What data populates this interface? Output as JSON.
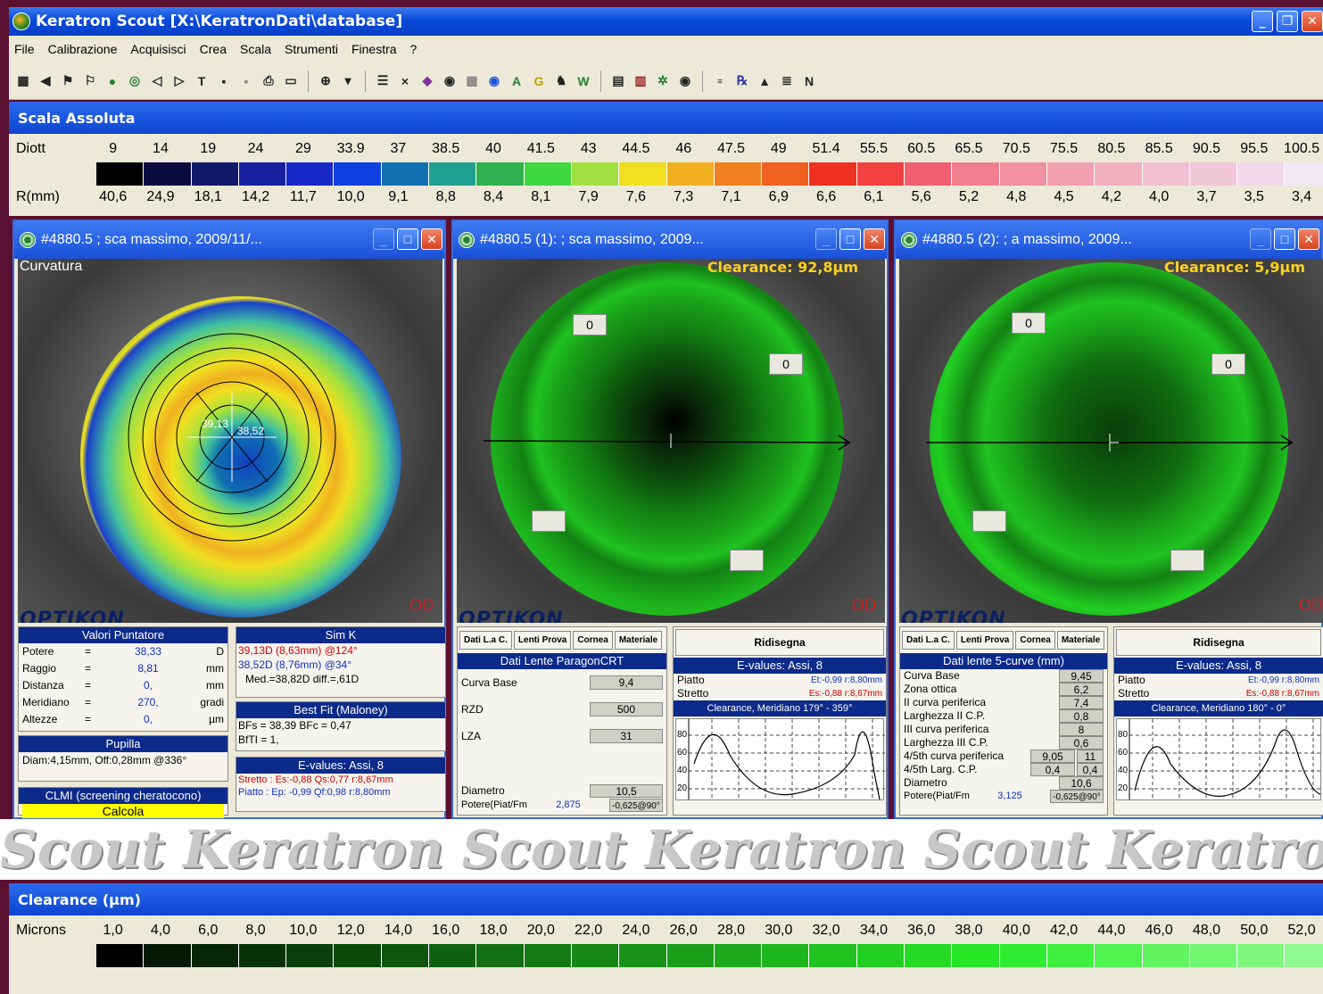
{
  "window": {
    "title": "Keratron Scout [X:\\KeratronDati\\database]"
  },
  "menu": [
    "File",
    "Calibrazione",
    "Acquisisci",
    "Crea",
    "Scala",
    "Strumenti",
    "Finestra",
    "?"
  ],
  "toolbar_icons": [
    "save-exam-icon",
    "camera-icon",
    "flag-icon",
    "flag-pair-icon",
    "globe-icon",
    "ring-icon",
    "rewind-icon",
    "forward-icon",
    "t-icon",
    "floppy-icon",
    "floppy-grey-icon",
    "print-icon",
    "monitor-icon",
    "binoculars-icon",
    "list-icon",
    "close-x-icon",
    "lens-icon",
    "eye-icon",
    "grid-icon",
    "target-icon",
    "a-icon",
    "g-icon",
    "chair-icon",
    "w-icon",
    "table-icon",
    "chart-icon",
    "tree-icon",
    "eye-view-icon",
    "view-icon",
    "rx-icon",
    "triangle-icon",
    "stack-icon",
    "n-icon"
  ],
  "scale_abs": {
    "title": "Scala Assoluta",
    "diott_label": "Diott",
    "rmm_label": "R(mm)",
    "diott": [
      "9",
      "14",
      "19",
      "24",
      "29",
      "33.9",
      "37",
      "38.5",
      "40",
      "41.5",
      "43",
      "44.5",
      "46",
      "47.5",
      "49",
      "51.4",
      "55.5",
      "60.5",
      "65.5",
      "70.5",
      "75.5",
      "80.5",
      "85.5",
      "90.5",
      "95.5",
      "100.5"
    ],
    "rmm": [
      "40,6",
      "24,9",
      "18,1",
      "14,2",
      "11,7",
      "10,0",
      "9,1",
      "8,8",
      "8,4",
      "8,1",
      "7,9",
      "7,6",
      "7,3",
      "7,1",
      "6,9",
      "6,6",
      "6,1",
      "5,6",
      "5,2",
      "4,8",
      "4,5",
      "4,2",
      "4,0",
      "3,7",
      "3,5",
      "3,4"
    ],
    "colors": [
      "#000000",
      "#0a0a40",
      "#10186a",
      "#1820a0",
      "#1a28c8",
      "#1040e0",
      "#1070b0",
      "#20a090",
      "#30b050",
      "#40d840",
      "#a0e040",
      "#f0e020",
      "#f0b020",
      "#f08020",
      "#f06020",
      "#f03020",
      "#f04040",
      "#f06070",
      "#f08090",
      "#f090a0",
      "#f0a0b0",
      "#f0b0c0",
      "#f0c0d0",
      "#f0c8d8",
      "#f0d8e8",
      "#f0e8f0"
    ]
  },
  "child1": {
    "title": "#4880.5 ; sca massimo, 2009/11/...",
    "map_label": "Curvatura",
    "k1": "39,13",
    "k2": "38,52",
    "od": "OD",
    "logo": "OPTIKON",
    "valori": {
      "title": "Valori Puntatore",
      "rows": [
        [
          "Potere",
          "=",
          "38,33",
          "D"
        ],
        [
          "Raggio",
          "=",
          "8,81",
          "mm"
        ],
        [
          "Distanza",
          "=",
          "0,",
          "mm"
        ],
        [
          "Meridiano",
          "=",
          "270,",
          "gradi"
        ],
        [
          "Altezze",
          "=",
          "0,",
          "µm"
        ]
      ]
    },
    "pupilla": {
      "title": "Pupilla",
      "text": "Diam:4,15mm, Off:0,28mm @336°"
    },
    "clmi": {
      "title": "CLMI (screening cheratocono)",
      "button": "Calcola"
    },
    "simk": {
      "title": "Sim K",
      "line1": "39,13D (8,63mm) @124°",
      "line2": "38,52D (8,76mm) @34°",
      "line3": "Med.=38,82D  diff.=,61D"
    },
    "bestfit": {
      "title": "Best Fit (Maloney)",
      "line1": "BFs = 38,39 BFc = 0,47",
      "line2": "BfTI = 1,"
    },
    "evalues": {
      "title": "E-values: Assi, 8",
      "line1": "Stretto :  Es:-0,88 Qs:0,77 r:8,67mm",
      "line2": "Piatto    :  Ep: -0,99 Qf:0,98 r:8,80mm"
    }
  },
  "child2": {
    "title": "#4880.5 (1): ; sca massimo, 2009...",
    "clearance": "Clearance: 92,8µm",
    "od": "OD",
    "logo": "OPTIKON",
    "markers": [
      "0",
      "0",
      "",
      ""
    ],
    "tabs": [
      "Dati L.a C.",
      "Lenti Prova",
      "Cornea",
      "Materiale"
    ],
    "dati_title": "Dati Lente ParagonCRT",
    "fields": [
      [
        "Curva Base",
        "9,4"
      ],
      [
        "RZD",
        "500"
      ],
      [
        "LZA",
        "31"
      ]
    ],
    "diametro": [
      "Diametro",
      "10,5"
    ],
    "potere": [
      "Potere(Piat/Fm",
      "2,875",
      "-0,625@90°"
    ],
    "ridisegna": "Ridisegna",
    "ev_title": "E-values: Assi, 8",
    "piatto": [
      "Piatto",
      "Et:-0,99 r:8,80mm"
    ],
    "stretto": [
      "Stretto",
      "Es:-0,88 r:8,67mm"
    ],
    "clear_title": "Clearance, Meridiano 179° - 359°",
    "yticks": [
      "80",
      "60",
      "40",
      "20"
    ]
  },
  "child3": {
    "title": "#4880.5 (2): ; a massimo, 2009...",
    "clearance": "Clearance: 5,9µm",
    "od": "OD",
    "logo": "OPTIKON",
    "markers": [
      "0",
      "0",
      "",
      ""
    ],
    "tabs": [
      "Dati L.a C.",
      "Lenti Prova",
      "Cornea",
      "Materiale"
    ],
    "dati_title": "Dati lente 5-curve (mm)",
    "fields": [
      [
        "Curva Base",
        "9,45",
        ""
      ],
      [
        "Zona ottica",
        "6,2",
        ""
      ],
      [
        "II curva periferica",
        "7,4",
        ""
      ],
      [
        "Larghezza II C.P.",
        "0,8",
        ""
      ],
      [
        "III curva periferica",
        "8",
        ""
      ],
      [
        "Larghezza III C.P.",
        "0,6",
        ""
      ],
      [
        "4/5th curva periferica",
        "9,05",
        "11"
      ],
      [
        "4/5th Larg. C.P.",
        "0,4",
        "0,4"
      ],
      [
        "Diametro",
        "10,6",
        ""
      ]
    ],
    "potere": [
      "Potere(Piat/Fm",
      "3,125",
      "-0,625@90°"
    ],
    "ridisegna": "Ridisegna",
    "ev_title": "E-values: Assi, 8",
    "piatto": [
      "Piatto",
      "Et:-0,99 r:8,80mm"
    ],
    "stretto": [
      "Stretto",
      "Es:-0,88 r:8,67mm"
    ],
    "clear_title": "Clearance, Meridiano 180° - 0°",
    "yticks": [
      "80",
      "60",
      "40",
      "20"
    ]
  },
  "watermark": "Scout Keratron Scout Keratron Scout Keratron Scout Ke",
  "scale_clear": {
    "title": "Clearance (µm)",
    "label": "Microns",
    "values": [
      "1,0",
      "4,0",
      "6,0",
      "8,0",
      "10,0",
      "12,0",
      "14,0",
      "16,0",
      "18,0",
      "20,0",
      "22,0",
      "24,0",
      "26,0",
      "28,0",
      "30,0",
      "32,0",
      "34,0",
      "36,0",
      "38,0",
      "40,0",
      "42,0",
      "44,0",
      "46,0",
      "48,0",
      "50,0",
      "52,0"
    ],
    "colors": [
      "#000000",
      "#041a04",
      "#062606",
      "#083208",
      "#0a3e0a",
      "#0c4a0c",
      "#0e560e",
      "#106210",
      "#126e12",
      "#147a14",
      "#168616",
      "#189218",
      "#1a9e1a",
      "#1caa1c",
      "#1eb61e",
      "#20c220",
      "#22ce22",
      "#24da24",
      "#26e626",
      "#30ec30",
      "#40f040",
      "#50f250",
      "#60f460",
      "#70f670",
      "#80f880",
      "#90fa90"
    ]
  }
}
